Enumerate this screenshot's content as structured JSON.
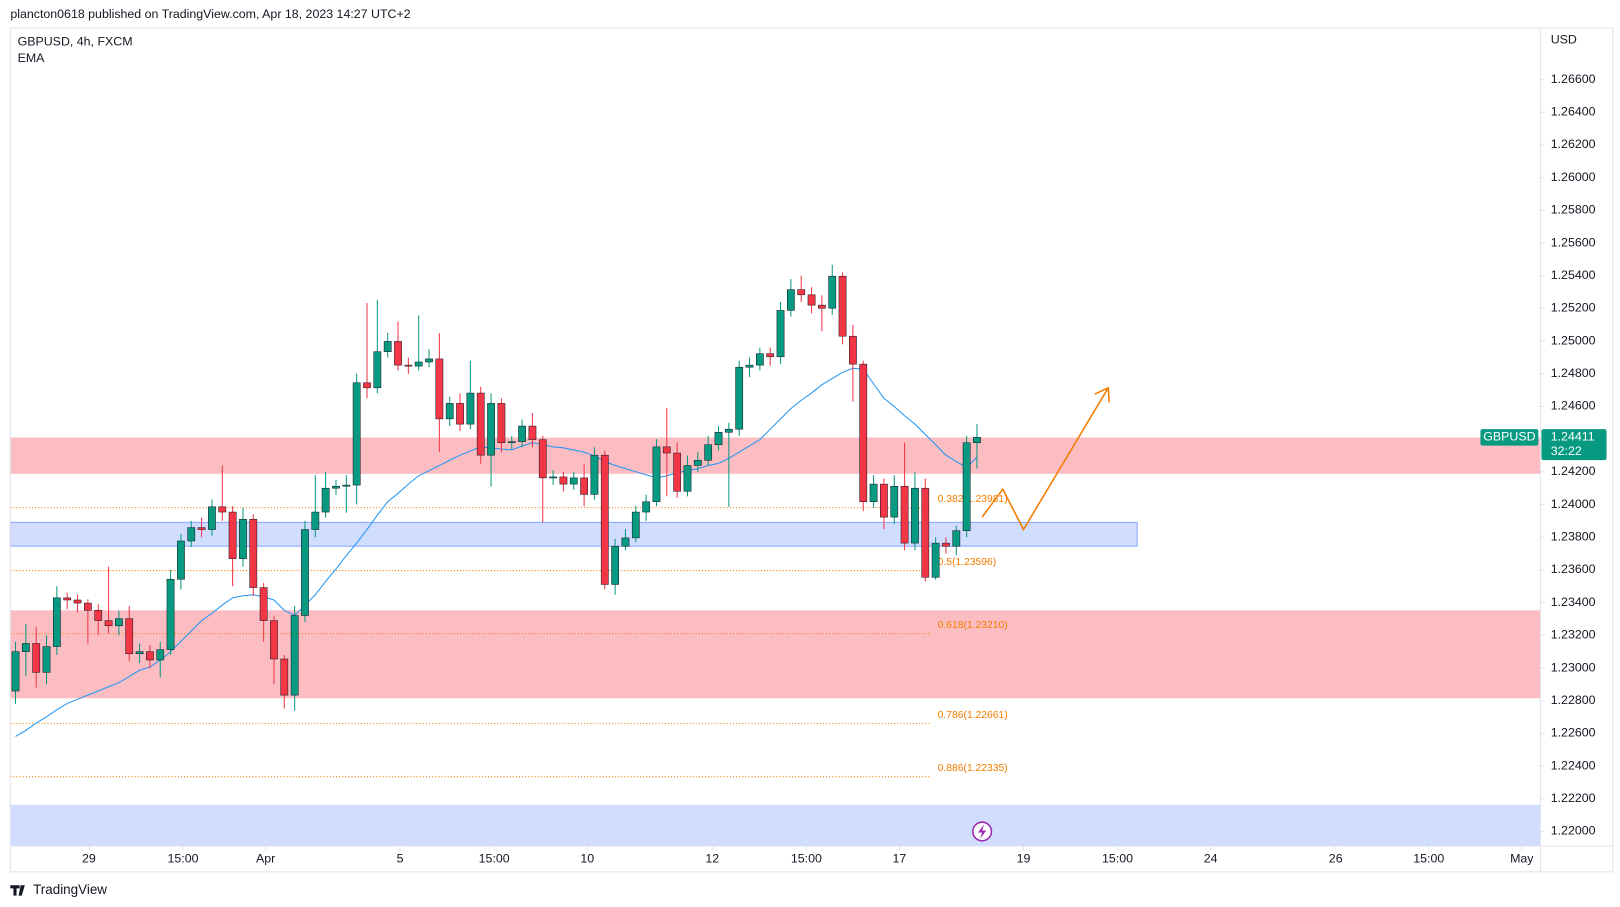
{
  "header": "plancton0618 published on TradingView.com, Apr 18, 2023 14:27 UTC+2",
  "brand": "TradingView",
  "chart_data": {
    "type": "candlestick",
    "legend_title": "GBPUSD, 4h, FXCM",
    "y_unit": "USD",
    "symbol": "GBPUSD",
    "last_price": 1.24411,
    "countdown": "32:22",
    "up_color": "#089981",
    "down_color": "#f23645",
    "grid": false,
    "xlim": [
      -0.5,
      147.5
    ],
    "ylim": [
      1.21911,
      1.26916
    ],
    "xticks": [
      {
        "value": 7.1,
        "label": "29"
      },
      {
        "value": 16.2,
        "label": "15:00"
      },
      {
        "value": 24.2,
        "label": "Apr"
      },
      {
        "value": 37.2,
        "label": "5"
      },
      {
        "value": 46.3,
        "label": "15:00"
      },
      {
        "value": 55.3,
        "label": "10"
      },
      {
        "value": 67.4,
        "label": "12"
      },
      {
        "value": 76.5,
        "label": "15:00"
      },
      {
        "value": 85.5,
        "label": "17"
      },
      {
        "value": 97.5,
        "label": "19"
      },
      {
        "value": 106.6,
        "label": "15:00"
      },
      {
        "value": 115.6,
        "label": "24"
      },
      {
        "value": 127.7,
        "label": "26"
      },
      {
        "value": 136.7,
        "label": "15:00"
      },
      {
        "value": 145.7,
        "label": "May"
      }
    ],
    "yticks": [
      {
        "value": 1.22,
        "label": "1.22000"
      },
      {
        "value": 1.222,
        "label": "1.22200"
      },
      {
        "value": 1.224,
        "label": "1.22400"
      },
      {
        "value": 1.226,
        "label": "1.22600"
      },
      {
        "value": 1.228,
        "label": "1.22800"
      },
      {
        "value": 1.23,
        "label": "1.23000"
      },
      {
        "value": 1.232,
        "label": "1.23200"
      },
      {
        "value": 1.234,
        "label": "1.23400"
      },
      {
        "value": 1.236,
        "label": "1.23600"
      },
      {
        "value": 1.238,
        "label": "1.23800"
      },
      {
        "value": 1.24,
        "label": "1.24000"
      },
      {
        "value": 1.242,
        "label": "1.24200"
      },
      {
        "value": 1.244,
        "label": "1.24400"
      },
      {
        "value": 1.246,
        "label": "1.24600"
      },
      {
        "value": 1.248,
        "label": "1.24800"
      },
      {
        "value": 1.25,
        "label": "1.25000"
      },
      {
        "value": 1.252,
        "label": "1.25200"
      },
      {
        "value": 1.254,
        "label": "1.25400"
      },
      {
        "value": 1.256,
        "label": "1.25600"
      },
      {
        "value": 1.258,
        "label": "1.25800"
      },
      {
        "value": 1.26,
        "label": "1.26000"
      },
      {
        "value": 1.262,
        "label": "1.26200"
      },
      {
        "value": 1.264,
        "label": "1.26400"
      },
      {
        "value": 1.266,
        "label": "1.26600"
      }
    ],
    "open": [
      1.22859,
      1.231,
      1.2315,
      1.22973,
      1.23131,
      1.23429,
      1.23416,
      1.23397,
      1.23353,
      1.2329,
      1.23258,
      1.23302,
      1.23087,
      1.231,
      1.23049,
      1.23112,
      1.23543,
      1.23777,
      1.23859,
      1.23847,
      1.23986,
      1.23954,
      1.23669,
      1.2391,
      1.23492,
      1.2329,
      1.23055,
      1.22834,
      1.23321,
      1.23847,
      1.23954,
      1.241,
      1.24112,
      1.24119,
      1.24745,
      1.24714,
      1.24935,
      1.24998,
      1.24853,
      1.24847,
      1.24872,
      1.24891,
      1.24524,
      1.24619,
      1.24492,
      1.24682,
      1.24302,
      1.24619,
      1.24378,
      1.24385,
      1.2448,
      1.24397,
      1.24163,
      1.24169,
      1.24125,
      1.24163,
      1.24062,
      1.24302,
      1.23511,
      1.23745,
      1.23796,
      1.23954,
      1.24017,
      1.24353,
      1.24315,
      1.24081,
      1.24239,
      1.24271,
      1.24366,
      1.24442,
      1.24461,
      1.2484,
      1.24853,
      1.24923,
      1.24904,
      1.25188,
      1.25315,
      1.25283,
      1.2522,
      1.25201,
      1.25397,
      1.2503,
      1.24859,
      1.24017,
      1.24125,
      1.23923,
      1.24112,
      1.23764,
      1.241,
      1.23555,
      1.23764,
      1.23745,
      1.2384,
      1.24378
    ],
    "high": [
      1.2316,
      1.2327,
      1.2325,
      1.232,
      1.235,
      1.2346,
      1.2345,
      1.2342,
      1.2339,
      1.23619,
      1.2335,
      1.2338,
      1.2315,
      1.2314,
      1.2316,
      1.236,
      1.2382,
      1.239,
      1.2392,
      1.2403,
      1.24239,
      1.2399,
      1.2398,
      1.2394,
      1.2352,
      1.2332,
      1.2308,
      1.2338,
      1.239,
      1.2418,
      1.242,
      1.2415,
      1.2418,
      1.248,
      1.25233,
      1.2525,
      1.2505,
      1.2512,
      1.249,
      1.25157,
      1.2495,
      1.25049,
      1.2466,
      1.2468,
      1.2488,
      1.2472,
      1.2468,
      1.2465,
      1.2442,
      1.2452,
      1.2456,
      1.2442,
      1.2421,
      1.242,
      1.242,
      1.2425,
      1.2435,
      1.2433,
      1.2379,
      1.2385,
      1.2399,
      1.2406,
      1.244,
      1.2459,
      1.2438,
      1.243,
      1.2432,
      1.2442,
      1.2448,
      1.245,
      1.2488,
      1.249,
      1.2496,
      1.2496,
      1.2524,
      1.2538,
      1.254,
      1.2533,
      1.2528,
      1.25467,
      1.2542,
      1.251,
      1.2488,
      1.2418,
      1.2416,
      1.2418,
      1.24378,
      1.242,
      1.2416,
      1.238,
      1.238,
      1.2387,
      1.2442,
      1.24492
    ],
    "low": [
      1.2278,
      1.2295,
      1.2288,
      1.229,
      1.2308,
      1.2336,
      1.2334,
      1.2315,
      1.232,
      1.2321,
      1.232,
      1.2304,
      1.2303,
      1.23,
      1.22942,
      1.2308,
      1.2348,
      1.2374,
      1.238,
      1.2381,
      1.239,
      1.235,
      1.2362,
      1.2344,
      1.2316,
      1.229,
      1.22752,
      1.22739,
      1.2328,
      1.238,
      1.2392,
      1.2406,
      1.2395,
      1.24,
      1.2465,
      1.2468,
      1.249,
      1.2482,
      1.248,
      1.2482,
      1.2484,
      1.24321,
      1.2448,
      1.2445,
      1.2446,
      1.2425,
      1.2411,
      1.2432,
      1.2434,
      1.2435,
      1.2435,
      1.23891,
      1.2412,
      1.2408,
      1.2409,
      1.2399,
      1.2403,
      1.2348,
      1.23448,
      1.2372,
      1.2377,
      1.239,
      1.2399,
      1.2405,
      1.2404,
      1.2405,
      1.242,
      1.2424,
      1.2433,
      1.23986,
      1.2442,
      1.2478,
      1.2482,
      1.2485,
      1.2486,
      1.2515,
      1.2524,
      1.2517,
      1.2506,
      1.2516,
      1.2498,
      1.2463,
      1.2396,
      1.2398,
      1.2385,
      1.2388,
      1.2372,
      1.2372,
      1.2353,
      1.2354,
      1.237,
      1.2369,
      1.238,
      1.2422
    ],
    "close": [
      1.231,
      1.2315,
      1.22973,
      1.23131,
      1.23429,
      1.23416,
      1.23397,
      1.23353,
      1.2329,
      1.23258,
      1.23302,
      1.23087,
      1.231,
      1.23049,
      1.23112,
      1.23543,
      1.23777,
      1.23859,
      1.23847,
      1.23986,
      1.23954,
      1.23669,
      1.2391,
      1.23492,
      1.2329,
      1.23055,
      1.22834,
      1.23321,
      1.23847,
      1.23954,
      1.241,
      1.24112,
      1.24119,
      1.24745,
      1.24714,
      1.24935,
      1.24998,
      1.24853,
      1.24847,
      1.24872,
      1.24891,
      1.24524,
      1.24619,
      1.24492,
      1.24682,
      1.24302,
      1.24619,
      1.24378,
      1.24385,
      1.2448,
      1.24397,
      1.24163,
      1.24169,
      1.24125,
      1.24163,
      1.24062,
      1.24302,
      1.23511,
      1.23745,
      1.23796,
      1.23954,
      1.24017,
      1.24353,
      1.24315,
      1.24081,
      1.24239,
      1.24271,
      1.24366,
      1.24442,
      1.24461,
      1.2484,
      1.24853,
      1.24923,
      1.24904,
      1.25188,
      1.25315,
      1.25283,
      1.2522,
      1.25201,
      1.25397,
      1.2503,
      1.24859,
      1.24017,
      1.24125,
      1.23923,
      1.24112,
      1.23764,
      1.241,
      1.23555,
      1.23764,
      1.23745,
      1.2384,
      1.24378,
      1.24411
    ],
    "series": [
      {
        "name": "EMA",
        "color": "#2196f3",
        "values": [
          1.22581,
          1.22619,
          1.22663,
          1.22701,
          1.22745,
          1.22783,
          1.22809,
          1.22834,
          1.22859,
          1.22885,
          1.2291,
          1.22948,
          1.22986,
          1.23005,
          1.23049,
          1.231,
          1.23163,
          1.23226,
          1.2329,
          1.23334,
          1.23385,
          1.23429,
          1.23442,
          1.23448,
          1.23435,
          1.23416,
          1.23353,
          1.23321,
          1.23385,
          1.23448,
          1.2353,
          1.23606,
          1.23688,
          1.23764,
          1.23847,
          1.23935,
          1.24017,
          1.24068,
          1.24125,
          1.24176,
          1.24207,
          1.24239,
          1.24271,
          1.24302,
          1.24328,
          1.24353,
          1.24347,
          1.2434,
          1.24334,
          1.24359,
          1.24378,
          1.24366,
          1.24353,
          1.24347,
          1.24334,
          1.24321,
          1.24296,
          1.24264,
          1.24239,
          1.2422,
          1.24201,
          1.24182,
          1.24163,
          1.24176,
          1.24195,
          1.24207,
          1.2422,
          1.24239,
          1.24252,
          1.24283,
          1.24321,
          1.24359,
          1.24397,
          1.24461,
          1.24524,
          1.24587,
          1.24638,
          1.24682,
          1.24733,
          1.24771,
          1.24809,
          1.24834,
          1.24828,
          1.24739,
          1.2465,
          1.246,
          1.24543,
          1.24492,
          1.24429,
          1.24366,
          1.24302,
          1.24264,
          1.24226,
          1.2429
        ]
      }
    ],
    "zones": [
      {
        "low": 1.24188,
        "high": 1.2441,
        "color": "#f23645",
        "extend": true
      },
      {
        "low": 1.22815,
        "high": 1.23353,
        "color": "#f23645",
        "extend": true
      },
      {
        "low": 1.23745,
        "high": 1.23891,
        "color": "#2962ff",
        "extend": false
      },
      {
        "low": 1.21911,
        "high": 1.22163,
        "color": "#2962ff",
        "extend": true
      }
    ],
    "fib_color": "#f57c00",
    "fib": [
      {
        "label": "0.382(1.23981)",
        "value": 1.23981
      },
      {
        "label": "0.5(1.23596)",
        "value": 1.23596
      },
      {
        "label": "0.618(1.23210)",
        "value": 1.2321
      },
      {
        "label": "0.786(1.22661)",
        "value": 1.22661
      },
      {
        "label": "0.886(1.22335)",
        "value": 1.22335
      }
    ]
  }
}
